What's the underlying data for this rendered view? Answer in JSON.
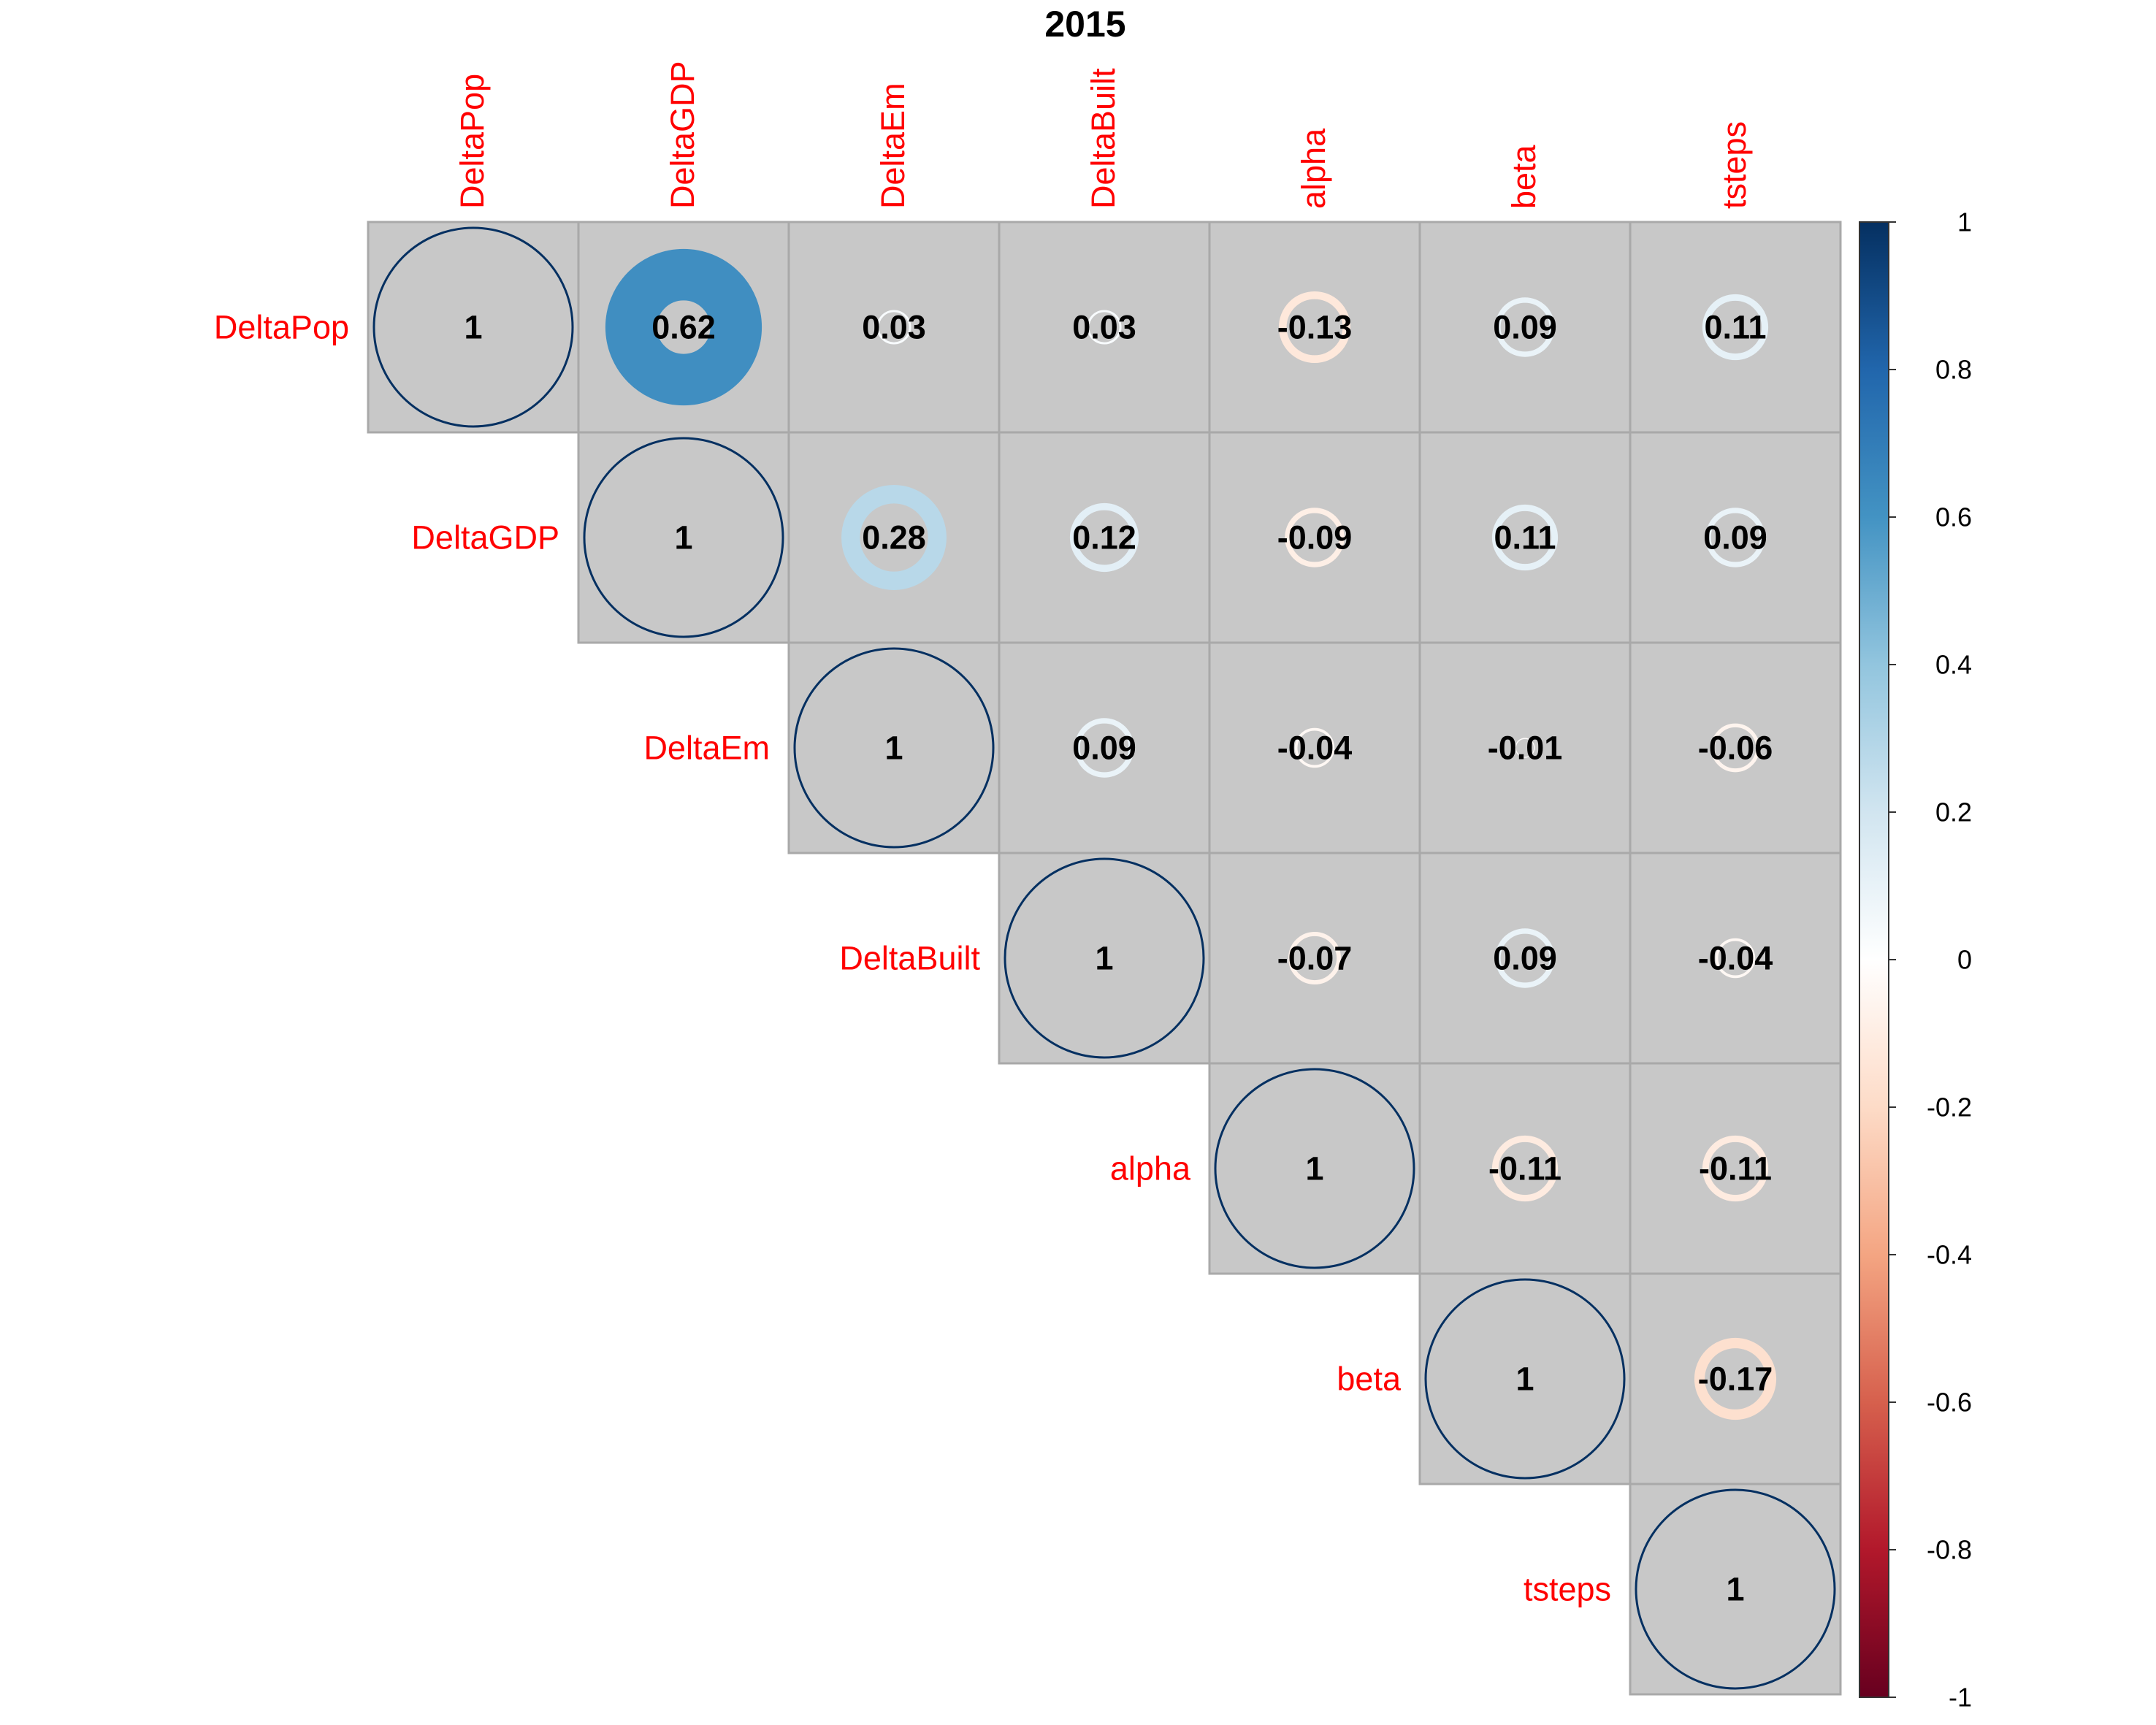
{
  "chart_data": {
    "type": "heatmap",
    "title": "2015",
    "variables": [
      "DeltaPop",
      "DeltaGDP",
      "DeltaEm",
      "DeltaBuilt",
      "alpha",
      "beta",
      "tsteps"
    ],
    "matrix_type": "upper",
    "cells": [
      {
        "row": 0,
        "col": 0,
        "value": 1,
        "label": "1"
      },
      {
        "row": 0,
        "col": 1,
        "value": 0.62,
        "label": "0.62"
      },
      {
        "row": 0,
        "col": 2,
        "value": 0.03,
        "label": "0.03"
      },
      {
        "row": 0,
        "col": 3,
        "value": 0.03,
        "label": "0.03"
      },
      {
        "row": 0,
        "col": 4,
        "value": -0.13,
        "label": "-0.13"
      },
      {
        "row": 0,
        "col": 5,
        "value": 0.09,
        "label": "0.09"
      },
      {
        "row": 0,
        "col": 6,
        "value": 0.11,
        "label": "0.11"
      },
      {
        "row": 1,
        "col": 1,
        "value": 1,
        "label": "1"
      },
      {
        "row": 1,
        "col": 2,
        "value": 0.28,
        "label": "0.28"
      },
      {
        "row": 1,
        "col": 3,
        "value": 0.12,
        "label": "0.12"
      },
      {
        "row": 1,
        "col": 4,
        "value": -0.09,
        "label": "-0.09"
      },
      {
        "row": 1,
        "col": 5,
        "value": 0.11,
        "label": "0.11"
      },
      {
        "row": 1,
        "col": 6,
        "value": 0.09,
        "label": "0.09"
      },
      {
        "row": 2,
        "col": 2,
        "value": 1,
        "label": "1"
      },
      {
        "row": 2,
        "col": 3,
        "value": 0.09,
        "label": "0.09"
      },
      {
        "row": 2,
        "col": 4,
        "value": -0.04,
        "label": "-0.04"
      },
      {
        "row": 2,
        "col": 5,
        "value": -0.01,
        "label": "-0.01"
      },
      {
        "row": 2,
        "col": 6,
        "value": -0.06,
        "label": "-0.06"
      },
      {
        "row": 3,
        "col": 3,
        "value": 1,
        "label": "1"
      },
      {
        "row": 3,
        "col": 4,
        "value": -0.07,
        "label": "-0.07"
      },
      {
        "row": 3,
        "col": 5,
        "value": 0.09,
        "label": "0.09"
      },
      {
        "row": 3,
        "col": 6,
        "value": -0.04,
        "label": "-0.04"
      },
      {
        "row": 4,
        "col": 4,
        "value": 1,
        "label": "1"
      },
      {
        "row": 4,
        "col": 5,
        "value": -0.11,
        "label": "-0.11"
      },
      {
        "row": 4,
        "col": 6,
        "value": -0.11,
        "label": "-0.11"
      },
      {
        "row": 5,
        "col": 5,
        "value": 1,
        "label": "1"
      },
      {
        "row": 5,
        "col": 6,
        "value": -0.17,
        "label": "-0.17"
      },
      {
        "row": 6,
        "col": 6,
        "value": 1,
        "label": "1"
      }
    ],
    "colorbar": {
      "range": [
        -1,
        1
      ],
      "ticks": [
        "1",
        "0.8",
        "0.6",
        "0.4",
        "0.2",
        "0",
        "-0.2",
        "-0.4",
        "-0.6",
        "-0.8",
        "-1"
      ],
      "tick_values": [
        1,
        0.8,
        0.6,
        0.4,
        0.2,
        0,
        -0.2,
        -0.4,
        -0.6,
        -0.8,
        -1
      ],
      "colors": [
        "#67001F",
        "#B2182B",
        "#D6604D",
        "#F4A582",
        "#FDDBC7",
        "#FFFFFF",
        "#D1E5F0",
        "#92C5DE",
        "#4393C3",
        "#2166AC",
        "#053061"
      ]
    },
    "label_color": "#FF0000",
    "cell_background": "#C8C8C8",
    "grid_color": "#A9A9A9"
  }
}
